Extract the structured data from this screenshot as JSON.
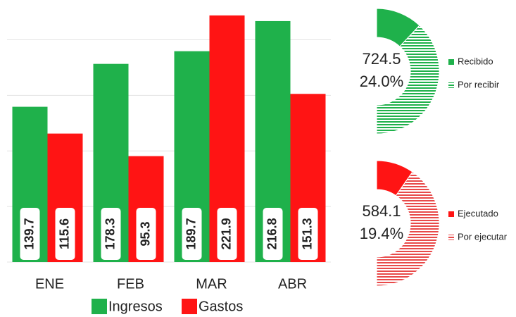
{
  "chart_data": [
    {
      "type": "bar",
      "categories": [
        "ENE",
        "FEB",
        "MAR",
        "ABR"
      ],
      "series": [
        {
          "name": "Ingresos",
          "color": "#1fb14b",
          "values": [
            139.7,
            178.3,
            189.7,
            216.8
          ]
        },
        {
          "name": "Gastos",
          "color": "#ff1414",
          "values": [
            115.6,
            95.3,
            221.9,
            151.3
          ]
        }
      ],
      "ylim": [
        0,
        225
      ],
      "yticks": [
        0,
        50,
        100,
        150,
        200
      ],
      "grid": true
    },
    {
      "type": "donut",
      "center_value": 724.5,
      "categories": [
        "Recibido",
        "Por recibir"
      ],
      "values": [
        24.0,
        76.0
      ],
      "value_labels": [
        "24.0%",
        null
      ],
      "colors": [
        "#1fb14b",
        "#1fb14b"
      ],
      "fill_styles": [
        "solid",
        "hatched"
      ]
    },
    {
      "type": "donut",
      "center_value": 584.1,
      "categories": [
        "Ejecutado",
        "Por ejecutar"
      ],
      "values": [
        19.4,
        80.6
      ],
      "value_labels": [
        "19.4%",
        null
      ],
      "colors": [
        "#ff1414",
        "#e84a4a"
      ],
      "fill_styles": [
        "solid",
        "hatched"
      ]
    }
  ]
}
